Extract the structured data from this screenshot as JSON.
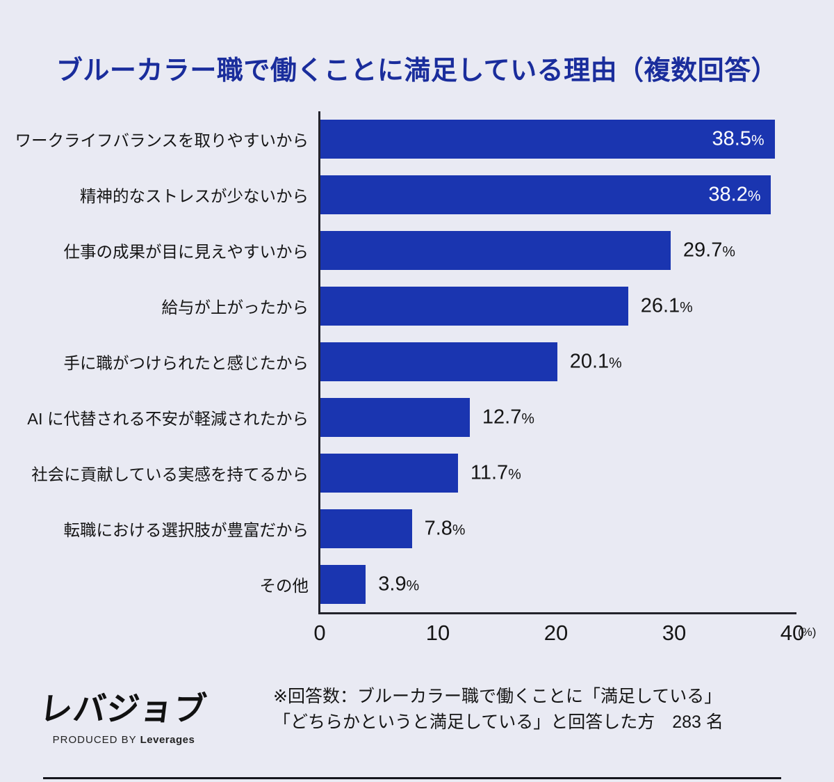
{
  "title": "ブルーカラー職で働くことに満足している理由（複数回答）",
  "chart_data": {
    "type": "bar",
    "orientation": "horizontal",
    "title": "ブルーカラー職で働くことに満足している理由（複数回答）",
    "categories": [
      "ワークライフバランスを取りやすいから",
      "精神的なストレスが少ないから",
      "仕事の成果が目に見えやすいから",
      "給与が上がったから",
      "手に職がつけられたと感じたから",
      "AI に代替される不安が軽減されたから",
      "社会に貢献している実感を持てるから",
      "転職における選択肢が豊富だから",
      "その他"
    ],
    "values": [
      38.5,
      38.2,
      29.7,
      26.1,
      20.1,
      12.7,
      11.7,
      7.8,
      3.9
    ],
    "value_labels": [
      "38.5",
      "38.2",
      "29.7",
      "26.1",
      "20.1",
      "12.7",
      "11.7",
      "7.8",
      "3.9"
    ],
    "unit": "%",
    "xlim": [
      0,
      40
    ],
    "x_ticks": [
      0,
      10,
      20,
      30,
      40
    ],
    "x_axis_unit": "(%)",
    "grid": false,
    "legend": "none",
    "bar_color": "#1a35b0",
    "inside_label_threshold": 35
  },
  "colors": {
    "background": "#e9eaf3",
    "bar": "#1a35b0",
    "title": "#1a2d9c",
    "axis": "#23232b",
    "text": "#151515"
  },
  "footer": {
    "logo_text": "レバジョブ",
    "logo_sub_prefix": "PRODUCED BY",
    "logo_sub_brand": "Leverages",
    "note_line1": "※回答数：ブルーカラー職で働くことに「満足している」",
    "note_line2": "「どちらかというと満足している」と回答した方　283 名"
  }
}
